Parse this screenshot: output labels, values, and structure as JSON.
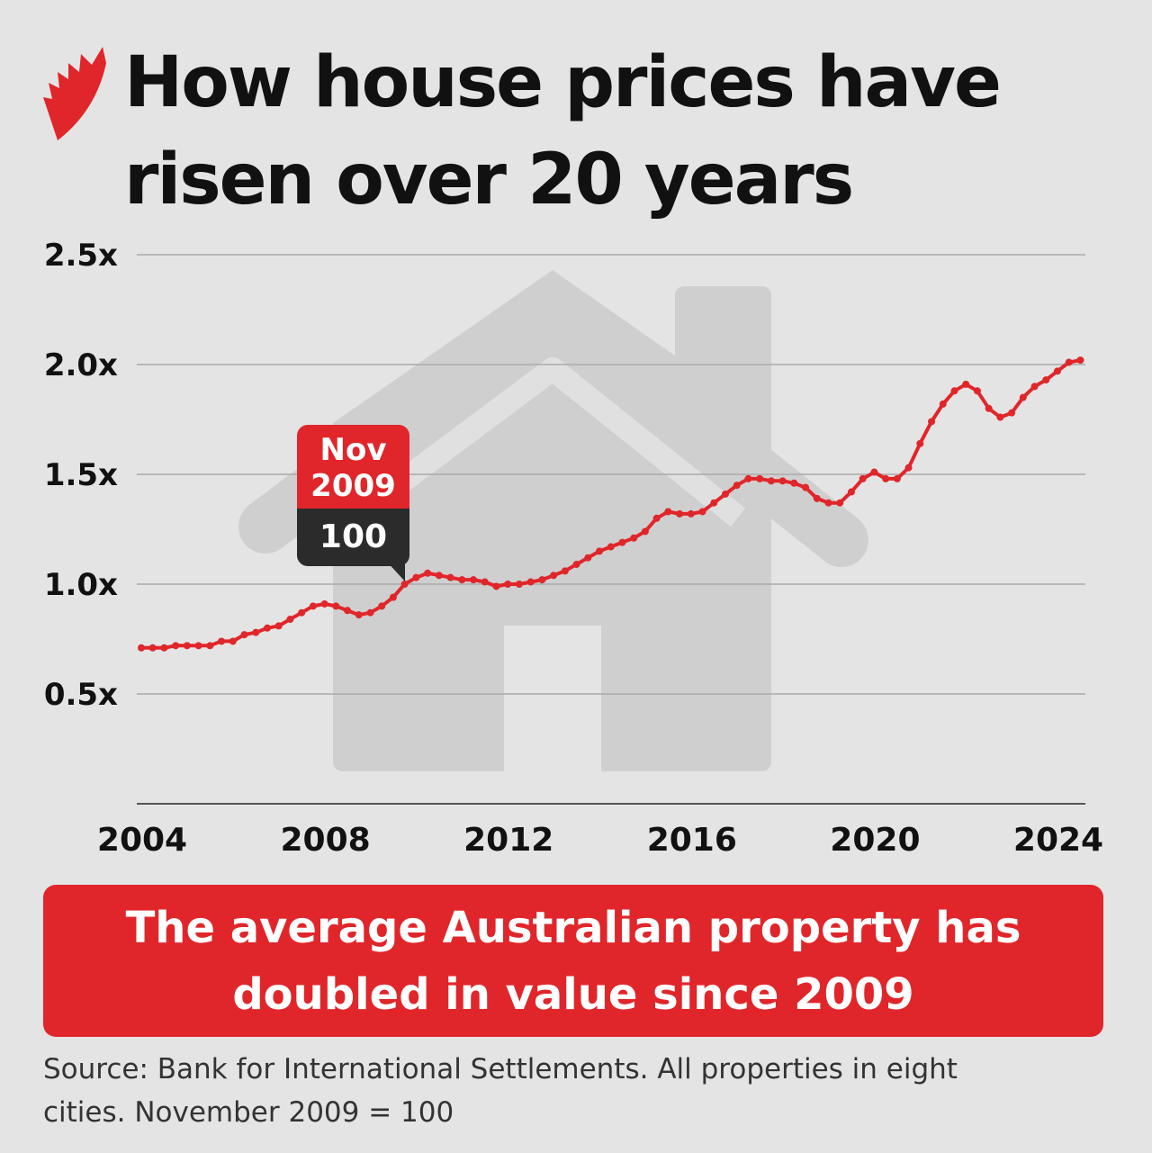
{
  "header": {
    "title": "How house prices have risen over 20 years",
    "logo": "SBS"
  },
  "colors": {
    "accent": "#e0262a",
    "line": "#e0262a",
    "callout_dark": "#2b2b2b",
    "background": "#e4e4e4",
    "watermark": "#cfcfcf"
  },
  "chart_data": {
    "type": "line",
    "title": "How house prices have risen over 20 years",
    "xlabel": "",
    "ylabel": "",
    "xlim": [
      2004,
      2024.6
    ],
    "ylim": [
      0,
      2.5
    ],
    "x_ticks": [
      "2004",
      "2008",
      "2012",
      "2016",
      "2020",
      "2024"
    ],
    "y_ticks": [
      "0.5x",
      "1.0x",
      "1.5x",
      "2.0x",
      "2.5x"
    ],
    "y_tick_values": [
      0.5,
      1.0,
      1.5,
      2.0,
      2.5
    ],
    "grid": true,
    "markers": true,
    "x": [
      2004,
      2004.25,
      2004.5,
      2004.75,
      2005,
      2005.25,
      2005.5,
      2005.75,
      2006,
      2006.25,
      2006.5,
      2006.75,
      2007,
      2007.25,
      2007.5,
      2007.75,
      2008,
      2008.25,
      2008.5,
      2008.75,
      2009,
      2009.25,
      2009.5,
      2009.75,
      2010,
      2010.25,
      2010.5,
      2010.75,
      2011,
      2011.25,
      2011.5,
      2011.75,
      2012,
      2012.25,
      2012.5,
      2012.75,
      2013,
      2013.25,
      2013.5,
      2013.75,
      2014,
      2014.25,
      2014.5,
      2014.75,
      2015,
      2015.25,
      2015.5,
      2015.75,
      2016,
      2016.25,
      2016.5,
      2016.75,
      2017,
      2017.25,
      2017.5,
      2017.75,
      2018,
      2018.25,
      2018.5,
      2018.75,
      2019,
      2019.25,
      2019.5,
      2019.75,
      2020,
      2020.25,
      2020.5,
      2020.75,
      2021,
      2021.25,
      2021.5,
      2021.75,
      2022,
      2022.25,
      2022.5,
      2022.75,
      2023,
      2023.25,
      2023.5,
      2023.75,
      2024,
      2024.25,
      2024.5
    ],
    "values": [
      0.71,
      0.71,
      0.71,
      0.72,
      0.72,
      0.72,
      0.72,
      0.74,
      0.74,
      0.77,
      0.78,
      0.8,
      0.81,
      0.84,
      0.87,
      0.9,
      0.91,
      0.9,
      0.88,
      0.86,
      0.87,
      0.9,
      0.94,
      1.0,
      1.03,
      1.05,
      1.04,
      1.03,
      1.02,
      1.02,
      1.01,
      0.99,
      1.0,
      1.0,
      1.01,
      1.02,
      1.04,
      1.06,
      1.09,
      1.12,
      1.15,
      1.17,
      1.19,
      1.21,
      1.24,
      1.3,
      1.33,
      1.32,
      1.32,
      1.33,
      1.37,
      1.41,
      1.45,
      1.48,
      1.48,
      1.47,
      1.47,
      1.46,
      1.44,
      1.39,
      1.37,
      1.37,
      1.42,
      1.48,
      1.51,
      1.48,
      1.48,
      1.53,
      1.64,
      1.74,
      1.82,
      1.88,
      1.91,
      1.88,
      1.8,
      1.76,
      1.78,
      1.85,
      1.9,
      1.93,
      1.97,
      2.01,
      2.02
    ],
    "annotation": {
      "label_top": "Nov 2009",
      "label_line1": "Nov",
      "label_line2": "2009",
      "value_label": "100",
      "x": 2009.75,
      "y": 1.0
    }
  },
  "banner": {
    "line1": "The average Australian property has",
    "line2": "doubled in value since 2009"
  },
  "source": {
    "line1": "Source: Bank for International Settlements. All properties in eight",
    "line2": "cities. November 2009 = 100"
  }
}
